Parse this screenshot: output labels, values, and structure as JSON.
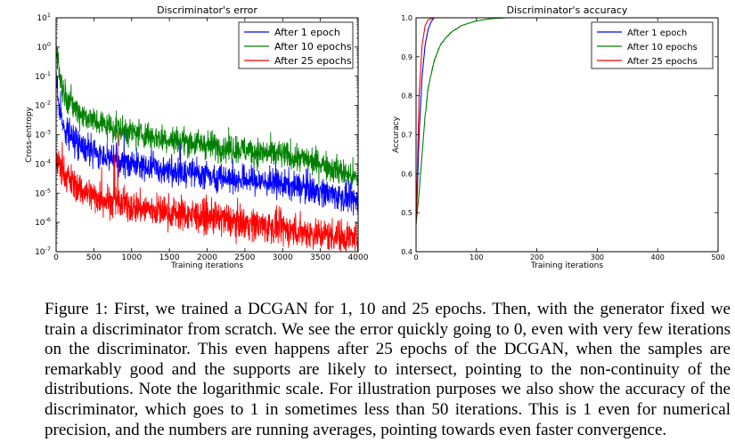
{
  "chart_data": [
    {
      "type": "line",
      "title": "Discriminator's error",
      "xlabel": "Training iterations",
      "ylabel": "Cross-entropy",
      "xlim": [
        0,
        4000
      ],
      "ylim": [
        1e-07,
        10
      ],
      "yscale": "log",
      "grid": false,
      "legend_position": "top-right",
      "xticks": [
        0,
        500,
        1000,
        1500,
        2000,
        2500,
        3000,
        3500,
        4000
      ],
      "yticks": [
        {
          "base": "10",
          "exp": "1"
        },
        {
          "base": "10",
          "exp": "0"
        },
        {
          "base": "10",
          "exp": "-1"
        },
        {
          "base": "10",
          "exp": "-2"
        },
        {
          "base": "10",
          "exp": "-3"
        },
        {
          "base": "10",
          "exp": "-4"
        },
        {
          "base": "10",
          "exp": "-5"
        },
        {
          "base": "10",
          "exp": "-6"
        },
        {
          "base": "10",
          "exp": "-7"
        }
      ],
      "series": [
        {
          "name": "After 1 epoch",
          "color": "#0000ff",
          "x": [
            0,
            50,
            100,
            200,
            300,
            500,
            750,
            1000,
            1500,
            2000,
            2500,
            3000,
            3500,
            4000
          ],
          "y": [
            0.1,
            0.005,
            0.002,
            0.0009,
            0.0005,
            0.00025,
            0.00014,
            0.0001,
            6e-05,
            4e-05,
            3e-05,
            2e-05,
            1.2e-05,
            5e-06
          ]
        },
        {
          "name": "After 10 epochs",
          "color": "#008000",
          "x": [
            0,
            50,
            100,
            200,
            300,
            500,
            750,
            1000,
            1500,
            2000,
            2500,
            3000,
            3500,
            4000
          ],
          "y": [
            1.5,
            0.1,
            0.03,
            0.012,
            0.006,
            0.003,
            0.0018,
            0.0012,
            0.0007,
            0.00045,
            0.0003,
            0.0002,
            0.00011,
            3e-05
          ]
        },
        {
          "name": "After 25 epochs",
          "color": "#ff0000",
          "x": [
            0,
            50,
            100,
            200,
            300,
            500,
            750,
            1000,
            1500,
            2000,
            2500,
            3000,
            3500,
            4000
          ],
          "y": [
            0.0002,
            8e-05,
            5e-05,
            2.5e-05,
            1.5e-05,
            8e-06,
            5e-06,
            3.5e-06,
            2.2e-06,
            1.5e-06,
            1e-06,
            6e-07,
            4e-07,
            3e-07
          ]
        }
      ]
    },
    {
      "type": "line",
      "title": "Discriminator's accuracy",
      "xlabel": "Training iterations",
      "ylabel": "Accuracy",
      "xlim": [
        0,
        500
      ],
      "ylim": [
        0.4,
        1.0
      ],
      "grid": false,
      "legend_position": "top-right",
      "xticks": [
        "0",
        "100",
        "200",
        "300",
        "400",
        "500"
      ],
      "yticks": [
        "0.4",
        "0.5",
        "0.6",
        "0.7",
        "0.8",
        "0.9",
        "1.0"
      ],
      "series": [
        {
          "name": "After 1 epoch",
          "color": "#0000ff",
          "x": [
            0,
            2,
            5,
            10,
            15,
            20,
            25,
            30,
            40,
            500
          ],
          "y": [
            0.47,
            0.55,
            0.7,
            0.85,
            0.93,
            0.97,
            0.99,
            1.0,
            1.0,
            1.0
          ]
        },
        {
          "name": "After 10 epochs",
          "color": "#008000",
          "x": [
            0,
            5,
            10,
            15,
            20,
            30,
            40,
            50,
            60,
            75,
            100,
            125,
            150,
            500
          ],
          "y": [
            0.47,
            0.55,
            0.65,
            0.75,
            0.82,
            0.89,
            0.93,
            0.95,
            0.965,
            0.98,
            0.992,
            0.998,
            1.0,
            1.0
          ]
        },
        {
          "name": "After 25 epochs",
          "color": "#ff0000",
          "x": [
            0,
            2,
            5,
            10,
            15,
            20,
            30,
            500
          ],
          "y": [
            0.47,
            0.6,
            0.8,
            0.93,
            0.98,
            0.995,
            1.0,
            1.0
          ]
        }
      ]
    }
  ],
  "caption": "Figure 1: First, we trained a DCGAN for 1, 10 and 25 epochs. Then, with the generator fixed we train a discriminator from scratch. We see the error quickly going to 0, even with very few iterations on the discriminator. This even happens after 25 epochs of the DCGAN, when the samples are remarkably good and the supports are likely to intersect, pointing to the non-continuity of the distributions. Note the logarithmic scale. For illustration purposes we also show the accuracy of the discriminator, which goes to 1 in sometimes less than 50 iterations. This is 1 even for numerical precision, and the numbers are running averages, pointing towards even faster convergence."
}
